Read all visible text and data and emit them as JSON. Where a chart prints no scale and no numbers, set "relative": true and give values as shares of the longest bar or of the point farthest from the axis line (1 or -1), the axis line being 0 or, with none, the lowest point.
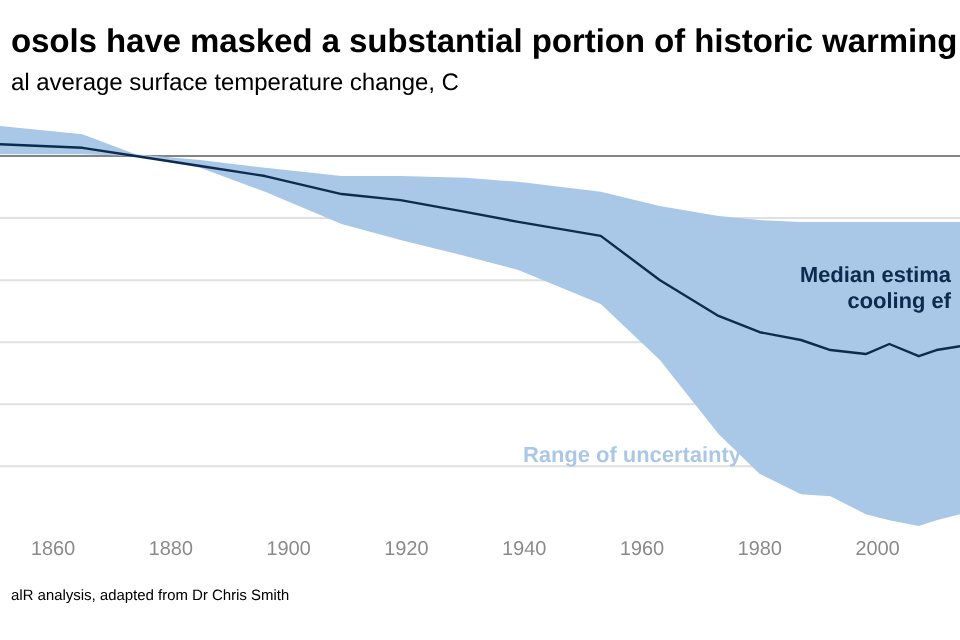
{
  "chart_data": {
    "type": "line",
    "title": "osols have masked a substantial portion of historic warming",
    "subtitle": "al average surface temperature change, C",
    "relative": true,
    "x": [
      1851,
      1865,
      1874,
      1885,
      1896,
      1909,
      1919,
      1930,
      1939,
      1953,
      1963,
      1973,
      1980,
      1987,
      1992,
      1998,
      2002,
      2007,
      2010,
      2014
    ],
    "xlim": [
      1851,
      2014
    ],
    "xticks": [
      1860,
      1880,
      1900,
      1920,
      1940,
      1960,
      1980,
      2000
    ],
    "grid": "y",
    "series": [
      {
        "color": "#0d2b4e",
        "values": [
          0.059,
          0.041,
          0,
          -0.05,
          -0.1,
          -0.19,
          -0.22,
          -0.279,
          -0.329,
          -0.399,
          -0.619,
          -0.799,
          -0.88,
          -0.919,
          -0.969,
          -0.989,
          -0.939,
          -1,
          -0.969,
          -0.95
        ],
        "upper": [
          0.15,
          0.109,
          0.009,
          -0.02,
          -0.059,
          -0.1,
          -0.1,
          -0.109,
          -0.129,
          -0.179,
          -0.25,
          -0.299,
          -0.32,
          -0.329,
          -0.329,
          -0.329,
          -0.329,
          -0.329,
          -0.329,
          -0.329
        ],
        "lower": [
          0.009,
          0.009,
          0,
          -0.059,
          -0.179,
          -0.34,
          -0.42,
          -0.499,
          -0.569,
          -0.739,
          -1.018,
          -1.388,
          -1.588,
          -1.689,
          -1.699,
          -1.789,
          -1.819,
          -1.848,
          -1.819,
          -1.789
        ]
      }
    ],
    "annotations": [
      "Median estima",
      "cooling ef",
      "Range of uncertainty",
      "alR analysis, adapted from Dr Chris Smith"
    ]
  }
}
